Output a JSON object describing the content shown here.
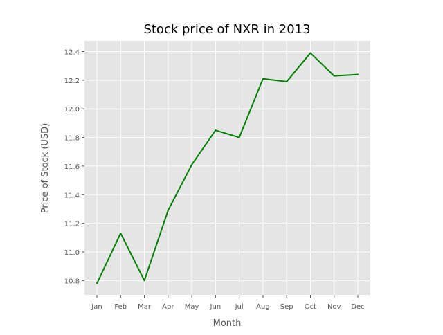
{
  "chart_data": {
    "type": "line",
    "title": "Stock price of NXR in 2013",
    "xlabel": "Month",
    "ylabel": "Price of Stock (USD)",
    "categories": [
      "Jan",
      "Feb",
      "Mar",
      "Apr",
      "May",
      "Jun",
      "Jul",
      "Aug",
      "Sep",
      "Oct",
      "Nov",
      "Dec"
    ],
    "series": [
      {
        "values": [
          10.78,
          11.13,
          10.8,
          11.29,
          11.61,
          11.85,
          11.8,
          12.21,
          12.19,
          12.39,
          12.23,
          12.24
        ],
        "color": "#008000"
      }
    ],
    "ylim": [
      10.7,
      12.475
    ],
    "yticks": [
      10.8,
      11.0,
      11.2,
      11.4,
      11.6,
      11.8,
      12.0,
      12.2,
      12.4
    ],
    "ytick_labels": [
      "10.8",
      "11.0",
      "11.2",
      "11.4",
      "11.6",
      "11.8",
      "12.0",
      "12.2",
      "12.4"
    ],
    "grid": true,
    "style": {
      "plot_background": "#e5e5e5",
      "grid_color": "#ffffff",
      "tick_label_color": "#555555",
      "axis_label_color": "#555555",
      "title_color": "#000000"
    }
  }
}
